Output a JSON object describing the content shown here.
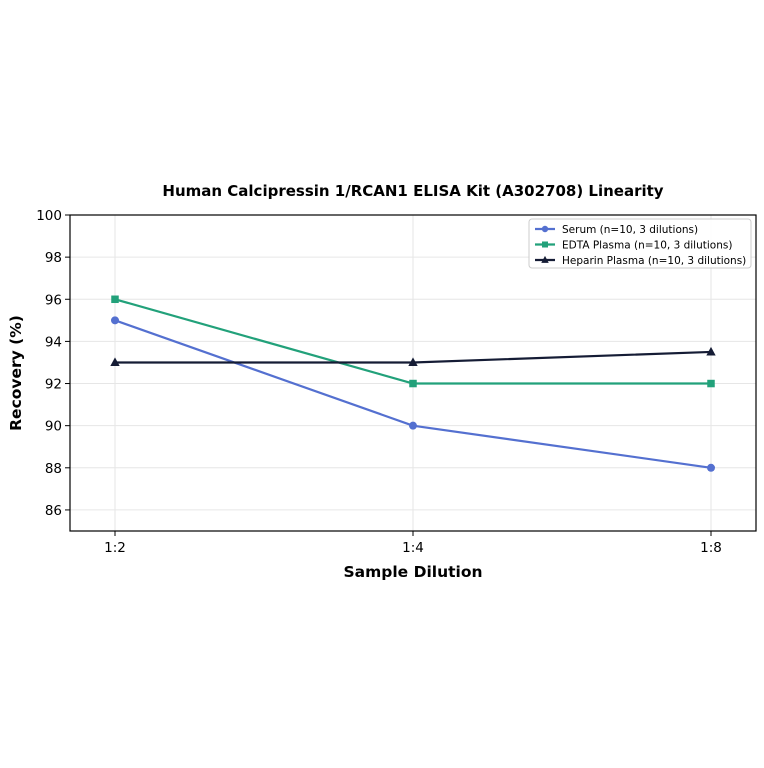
{
  "chart_data": {
    "type": "line",
    "title": "Human Calcipressin 1/RCAN1 ELISA Kit (A302708) Linearity",
    "xlabel": "Sample Dilution",
    "ylabel": "Recovery (%)",
    "categories": [
      "1:2",
      "1:4",
      "1:8"
    ],
    "ylim": [
      85,
      100
    ],
    "yticks": [
      86,
      88,
      90,
      92,
      94,
      96,
      98,
      100
    ],
    "grid": true,
    "legend_position": "top-right",
    "series": [
      {
        "name": "Serum (n=10, 3 dilutions)",
        "values": [
          95,
          90,
          88
        ],
        "color": "#5470d0",
        "marker": "circle"
      },
      {
        "name": "EDTA Plasma (n=10, 3 dilutions)",
        "values": [
          96,
          92,
          92
        ],
        "color": "#22a17a",
        "marker": "square"
      },
      {
        "name": "Heparin Plasma (n=10, 3 dilutions)",
        "values": [
          93,
          93,
          93.5
        ],
        "color": "#151c35",
        "marker": "triangle"
      }
    ]
  }
}
